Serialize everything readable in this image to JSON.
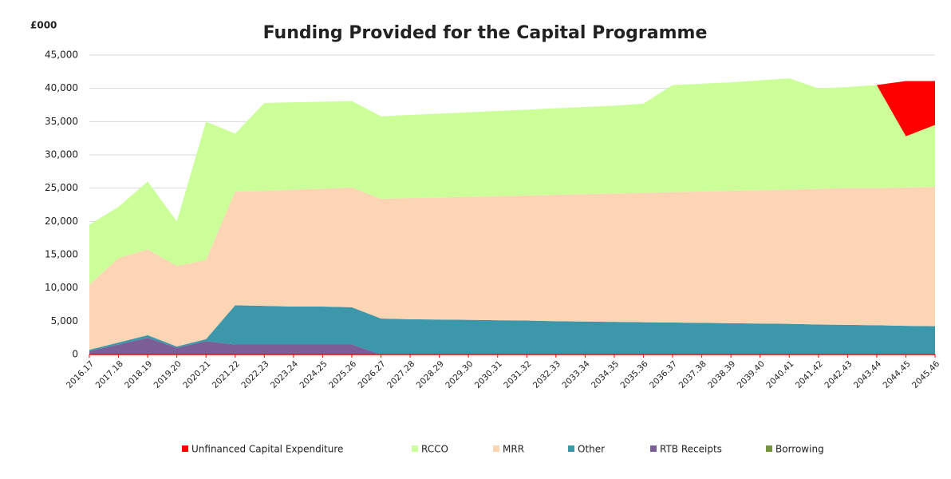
{
  "chart_data": {
    "type": "stacked_area",
    "title": "Funding Provided for the Capital Programme",
    "y_label": "£000",
    "categories": [
      "2016.17",
      "2017.18",
      "2018.19",
      "2019.20",
      "2020.21",
      "2021.22",
      "2022.23",
      "2023.24",
      "2024.25",
      "2025.26",
      "2026.27",
      "2027.28",
      "2028.29",
      "2029.30",
      "2030.31",
      "2031.32",
      "2032.33",
      "2033.34",
      "2034.35",
      "2035.36",
      "2036.37",
      "2037.38",
      "2038.39",
      "2039.40",
      "2040.41",
      "2041.42",
      "2042.43",
      "2043.44",
      "2044.45",
      "2045.46"
    ],
    "series": [
      {
        "name": "Unfinanced Capital Expenditure",
        "color": "#ff0000",
        "values": [
          0,
          0,
          0,
          0,
          0,
          0,
          0,
          0,
          0,
          0,
          0,
          0,
          0,
          0,
          0,
          0,
          0,
          0,
          0,
          0,
          0,
          0,
          0,
          0,
          0,
          0,
          0,
          0,
          8300,
          6600
        ]
      },
      {
        "name": "RCCO",
        "color": "#ccff99",
        "values": [
          9000,
          7700,
          10200,
          6700,
          20800,
          8700,
          13200,
          13100,
          13100,
          13000,
          12400,
          12500,
          12600,
          12700,
          12800,
          12900,
          13000,
          13100,
          13200,
          13400,
          16100,
          16200,
          16300,
          16500,
          16700,
          15100,
          15200,
          15500,
          7700,
          9300
        ]
      },
      {
        "name": "MRR",
        "color": "#fcd5b5",
        "values": [
          9800,
          12700,
          12900,
          12100,
          11900,
          17100,
          17300,
          17600,
          17700,
          18000,
          18000,
          18200,
          18350,
          18500,
          18650,
          18800,
          19000,
          19150,
          19300,
          19450,
          19600,
          19750,
          19900,
          20050,
          20200,
          20400,
          20550,
          20600,
          20800,
          20950
        ]
      },
      {
        "name": "Other",
        "color": "#3d97aa",
        "values": [
          200,
          300,
          400,
          200,
          300,
          5900,
          5800,
          5700,
          5700,
          5600,
          5400,
          5300,
          5250,
          5200,
          5150,
          5100,
          5000,
          4950,
          4900,
          4850,
          4800,
          4750,
          4700,
          4650,
          4600,
          4500,
          4450,
          4400,
          4300,
          4250
        ]
      },
      {
        "name": "RTB Receipts",
        "color": "#7b5e96",
        "values": [
          500,
          1500,
          2500,
          1000,
          2000,
          1500,
          1500,
          1500,
          1500,
          1500,
          0,
          0,
          0,
          0,
          0,
          0,
          0,
          0,
          0,
          0,
          0,
          0,
          0,
          0,
          0,
          0,
          0,
          0,
          0,
          0
        ]
      },
      {
        "name": "Borrowing",
        "color": "#77933c",
        "values": [
          0,
          0,
          0,
          0,
          0,
          0,
          0,
          0,
          0,
          0,
          0,
          0,
          0,
          0,
          0,
          0,
          0,
          0,
          0,
          0,
          0,
          0,
          0,
          0,
          0,
          0,
          0,
          0,
          0,
          0
        ]
      }
    ],
    "ylim": [
      0,
      45000
    ],
    "yticks": [
      0,
      {
        "value": 5000,
        "label": "5,000"
      },
      {
        "value": 10000,
        "label": "10,000"
      },
      {
        "value": 15000,
        "label": "15,000"
      },
      {
        "value": 20000,
        "label": "20,000"
      },
      {
        "value": 25000,
        "label": "25,000"
      },
      {
        "value": 30000,
        "label": "30,000"
      },
      {
        "value": 35000,
        "label": "35,000"
      },
      {
        "value": 40000,
        "label": "40,000"
      },
      {
        "value": 45000,
        "label": "45,000"
      }
    ],
    "grid": true,
    "legend": "bottom"
  }
}
